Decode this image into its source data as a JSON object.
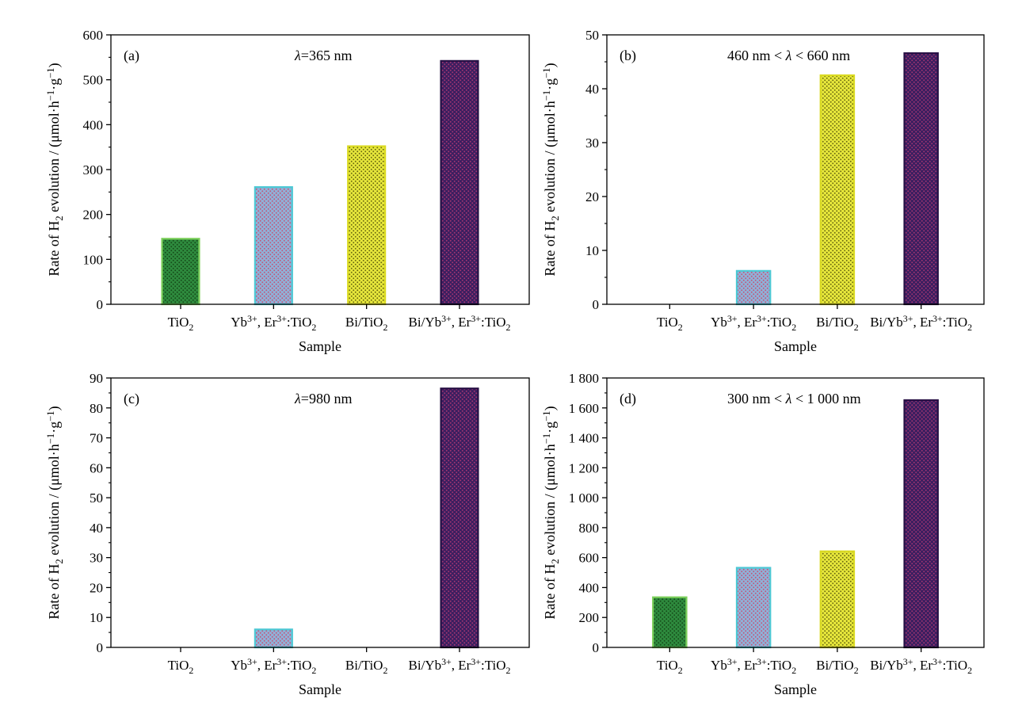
{
  "colors": {
    "TiO2": {
      "fill": "#2e8b3e",
      "stroke": "#7ccf5a",
      "dot": "#164d1a"
    },
    "Yb3+, Er3+:TiO2": {
      "fill": "#8fb2d9",
      "stroke": "#4cc8d4",
      "dot": "#c2587a"
    },
    "Bi/TiO2": {
      "fill": "#e8e83c",
      "stroke": "#dada22",
      "dot": "#6b6b10"
    },
    "Bi/Yb3+, Er3+:TiO2": {
      "fill": "#3a1e60",
      "stroke": "#281045",
      "dot": "#a33570"
    }
  },
  "chart_data": [
    {
      "type": "bar",
      "panel": "(a)",
      "annotation": "λ=365 nm",
      "xlabel": "Sample",
      "ylabel": "Rate of H2 evolution / (μmol·h−1·g−1)",
      "categories": [
        "TiO2",
        "Yb3+, Er3+:TiO2",
        "Bi/TiO2",
        "Bi/Yb3+, Er3+:TiO2"
      ],
      "values": [
        146,
        261,
        352,
        542
      ],
      "ylim": [
        0,
        600
      ],
      "yticks": [
        0,
        100,
        200,
        300,
        400,
        500,
        600
      ],
      "ytick_labels": [
        "0",
        "100",
        "200",
        "300",
        "400",
        "500",
        "600"
      ]
    },
    {
      "type": "bar",
      "panel": "(b)",
      "annotation": "460 nm < λ < 660 nm",
      "xlabel": "Sample",
      "ylabel": "Rate of H2 evolution / (μmol·h−1·g−1)",
      "categories": [
        "TiO2",
        "Yb3+, Er3+:TiO2",
        "Bi/TiO2",
        "Bi/Yb3+, Er3+:TiO2"
      ],
      "values": [
        0,
        6.2,
        42.5,
        46.6
      ],
      "ylim": [
        0,
        50
      ],
      "yticks": [
        0,
        10,
        20,
        30,
        40,
        50
      ],
      "ytick_labels": [
        "0",
        "10",
        "20",
        "30",
        "40",
        "50"
      ]
    },
    {
      "type": "bar",
      "panel": "(c)",
      "annotation": "λ=980 nm",
      "xlabel": "Sample",
      "ylabel": "Rate of H2 evolution / (μmol·h−1·g−1)",
      "categories": [
        "TiO2",
        "Yb3+, Er3+:TiO2",
        "Bi/TiO2",
        "Bi/Yb3+, Er3+:TiO2"
      ],
      "values": [
        0,
        6,
        0,
        86.5
      ],
      "ylim": [
        0,
        90
      ],
      "yticks": [
        0,
        10,
        20,
        30,
        40,
        50,
        60,
        70,
        80,
        90
      ],
      "ytick_labels": [
        "0",
        "10",
        "20",
        "30",
        "40",
        "50",
        "60",
        "70",
        "80",
        "90"
      ]
    },
    {
      "type": "bar",
      "panel": "(d)",
      "annotation": "300 nm < λ < 1 000 nm",
      "xlabel": "Sample",
      "ylabel": "Rate of H2 evolution / (μmol·h−1·g−1)",
      "categories": [
        "TiO2",
        "Yb3+, Er3+:TiO2",
        "Bi/TiO2",
        "Bi/Yb3+, Er3+:TiO2"
      ],
      "values": [
        335,
        532,
        642,
        1652
      ],
      "ylim": [
        0,
        1800
      ],
      "yticks": [
        0,
        200,
        400,
        600,
        800,
        1000,
        1200,
        1400,
        1600,
        1800
      ],
      "ytick_labels": [
        "0",
        "200",
        "400",
        "600",
        "800",
        "1 000",
        "1 200",
        "1 400",
        "1 600",
        "1 800"
      ]
    }
  ]
}
